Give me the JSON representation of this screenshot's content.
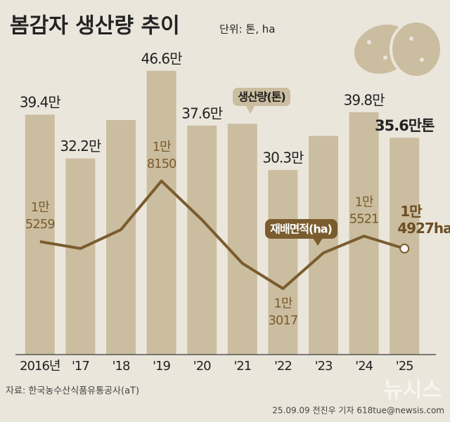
{
  "chart_data": {
    "type": "bar_line",
    "title": "봄감자 생산량 추이",
    "unit_note": "단위: 톤, ha",
    "categories": [
      "2016년",
      "'17",
      "'18",
      "'19",
      "'20",
      "'21",
      "'22",
      "'23",
      "'24",
      "'25"
    ],
    "series": [
      {
        "name": "생산량(톤)",
        "type": "bar",
        "color": "#cbbd9f",
        "values": [
          39.4,
          32.2,
          38.5,
          46.6,
          37.6,
          37.9,
          30.3,
          35.9,
          39.8,
          35.6
        ],
        "value_labels": [
          "39.4만",
          "32.2만",
          null,
          "46.6만",
          "37.6만",
          null,
          "30.3만",
          null,
          "39.8만",
          "35.6만톤"
        ]
      },
      {
        "name": "재배면적(ha)",
        "type": "line",
        "axis": "y2",
        "color": "#7a5c2e",
        "values": [
          15259,
          14930,
          15830,
          18150,
          16300,
          14220,
          13017,
          14720,
          15521,
          14927
        ],
        "value_labels": [
          "1만 5259",
          null,
          null,
          "1만 8150",
          null,
          null,
          "1만 3017",
          null,
          "1만 5521",
          "1만 4927ha"
        ]
      }
    ],
    "ylim": [
      0,
      51.3
    ],
    "y2lim": [
      9868,
      24776
    ],
    "source": "자료: 한국농수산식품유통공사(aT)",
    "credit": "25.09.09 전진우 기자 618tue@newsis.com",
    "watermark": "뉴시스"
  }
}
